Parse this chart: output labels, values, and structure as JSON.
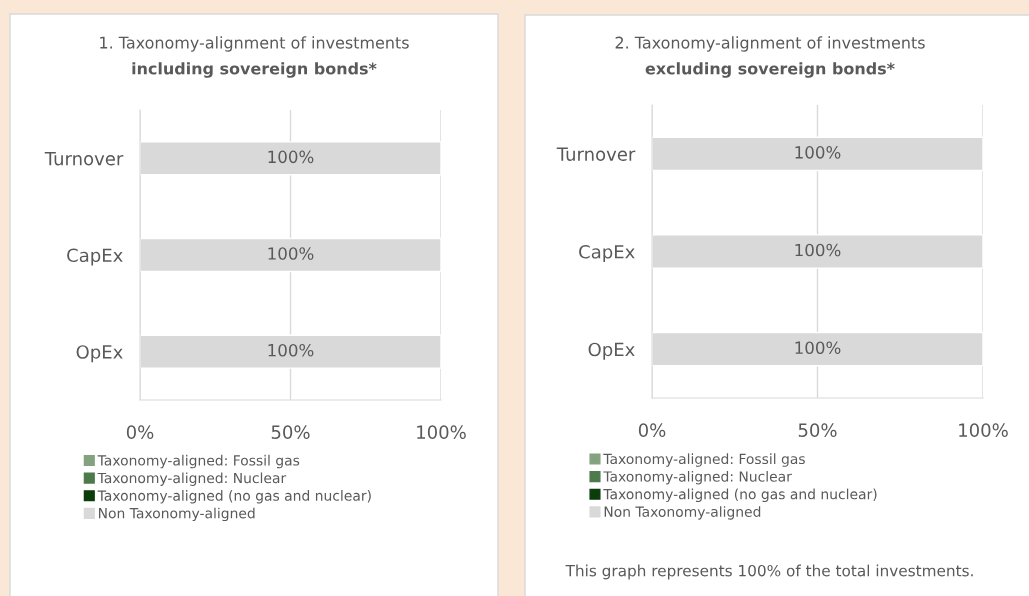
{
  "chart_data": [
    {
      "type": "bar",
      "orientation": "horizontal",
      "stacked": true,
      "title": "1. Taxonomy-alignment of investments",
      "subtitle": "including sovereign bonds*",
      "categories": [
        "Turnover",
        "CapEx",
        "OpEx"
      ],
      "series": [
        {
          "name": "Taxonomy-aligned: Fossil gas",
          "color": "#84a27f",
          "values": [
            0,
            0,
            0
          ]
        },
        {
          "name": "Taxonomy-aligned: Nuclear",
          "color": "#4c7a4b",
          "values": [
            0,
            0,
            0
          ]
        },
        {
          "name": "Taxonomy-aligned (no gas and nuclear)",
          "color": "#0b3d0b",
          "values": [
            0,
            0,
            0
          ]
        },
        {
          "name": "Non Taxonomy-aligned",
          "color": "#d9d9d9",
          "values": [
            100,
            100,
            100
          ],
          "value_labels": [
            "100%",
            "100%",
            "100%"
          ]
        }
      ],
      "xlim": [
        0,
        100
      ],
      "xticks": [
        {
          "value": 0,
          "label": "0%"
        },
        {
          "value": 50,
          "label": "50%"
        },
        {
          "value": 100,
          "label": "100%"
        }
      ],
      "grid": "x",
      "legend": "bottom"
    },
    {
      "type": "bar",
      "orientation": "horizontal",
      "stacked": true,
      "title": "2. Taxonomy-alignment of investments",
      "subtitle": "excluding sovereign bonds*",
      "categories": [
        "Turnover",
        "CapEx",
        "OpEx"
      ],
      "series": [
        {
          "name": "Taxonomy-aligned: Fossil gas",
          "color": "#84a27f",
          "values": [
            0,
            0,
            0
          ]
        },
        {
          "name": "Taxonomy-aligned: Nuclear",
          "color": "#4c7a4b",
          "values": [
            0,
            0,
            0
          ]
        },
        {
          "name": "Taxonomy-aligned (no gas and nuclear)",
          "color": "#0b3d0b",
          "values": [
            0,
            0,
            0
          ]
        },
        {
          "name": "Non Taxonomy-aligned",
          "color": "#d9d9d9",
          "values": [
            100,
            100,
            100
          ],
          "value_labels": [
            "100%",
            "100%",
            "100%"
          ]
        }
      ],
      "xlim": [
        0,
        100
      ],
      "xticks": [
        {
          "value": 0,
          "label": "0%"
        },
        {
          "value": 50,
          "label": "50%"
        },
        {
          "value": 100,
          "label": "100%"
        }
      ],
      "grid": "x",
      "legend": "bottom",
      "annotations": [
        "This graph represents 100% of the total investments."
      ]
    }
  ]
}
